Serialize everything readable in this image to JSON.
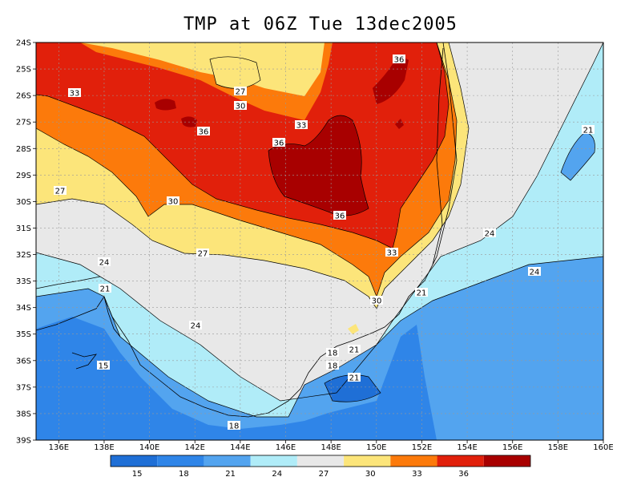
{
  "title": "TMP at 06Z Tue 13dec2005",
  "map": {
    "lon_ticks": [
      "136E",
      "138E",
      "140E",
      "142E",
      "144E",
      "146E",
      "148E",
      "150E",
      "152E",
      "154E",
      "156E",
      "158E",
      "160E"
    ],
    "lat_ticks": [
      "24S",
      "25S",
      "26S",
      "27S",
      "28S",
      "29S",
      "30S",
      "31S",
      "32S",
      "33S",
      "34S",
      "35S",
      "36S",
      "37S",
      "38S",
      "39S"
    ],
    "contour_labels": [
      "33",
      "27",
      "30",
      "36",
      "33",
      "36",
      "36",
      "21",
      "27",
      "30",
      "36",
      "33",
      "24",
      "24",
      "21",
      "27",
      "30",
      "21",
      "24",
      "24",
      "21",
      "18",
      "18",
      "15",
      "21",
      "18"
    ]
  },
  "colorbar": {
    "colors": [
      "#1f6fd6",
      "#2f85e8",
      "#53a4ef",
      "#b0ecf8",
      "#e8e8e8",
      "#fce57a",
      "#fc7a0b",
      "#e1200b",
      "#a80000"
    ],
    "labels": [
      "15",
      "18",
      "21",
      "24",
      "27",
      "30",
      "33",
      "36"
    ]
  }
}
